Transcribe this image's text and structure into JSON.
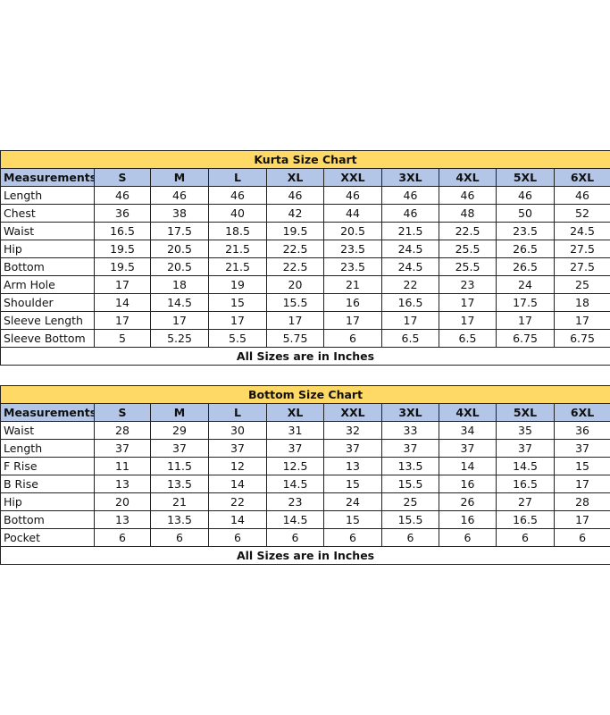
{
  "tables": [
    {
      "title": "Kurta Size Chart",
      "header": [
        "Measurements",
        "S",
        "M",
        "L",
        "XL",
        "XXL",
        "3XL",
        "4XL",
        "5XL",
        "6XL"
      ],
      "rows": [
        [
          "Length",
          "46",
          "46",
          "46",
          "46",
          "46",
          "46",
          "46",
          "46",
          "46"
        ],
        [
          "Chest",
          "36",
          "38",
          "40",
          "42",
          "44",
          "46",
          "48",
          "50",
          "52"
        ],
        [
          "Waist",
          "16.5",
          "17.5",
          "18.5",
          "19.5",
          "20.5",
          "21.5",
          "22.5",
          "23.5",
          "24.5"
        ],
        [
          "Hip",
          "19.5",
          "20.5",
          "21.5",
          "22.5",
          "23.5",
          "24.5",
          "25.5",
          "26.5",
          "27.5"
        ],
        [
          "Bottom",
          "19.5",
          "20.5",
          "21.5",
          "22.5",
          "23.5",
          "24.5",
          "25.5",
          "26.5",
          "27.5"
        ],
        [
          "Arm Hole",
          "17",
          "18",
          "19",
          "20",
          "21",
          "22",
          "23",
          "24",
          "25"
        ],
        [
          "Shoulder",
          "14",
          "14.5",
          "15",
          "15.5",
          "16",
          "16.5",
          "17",
          "17.5",
          "18"
        ],
        [
          "Sleeve Length",
          "17",
          "17",
          "17",
          "17",
          "17",
          "17",
          "17",
          "17",
          "17"
        ],
        [
          "Sleeve Bottom",
          "5",
          "5.25",
          "5.5",
          "5.75",
          "6",
          "6.5",
          "6.5",
          "6.75",
          "6.75"
        ]
      ],
      "footer": "All Sizes are in Inches"
    },
    {
      "title": "Bottom Size Chart",
      "header": [
        "Measurements",
        "S",
        "M",
        "L",
        "XL",
        "XXL",
        "3XL",
        "4XL",
        "5XL",
        "6XL"
      ],
      "rows": [
        [
          "Waist",
          "28",
          "29",
          "30",
          "31",
          "32",
          "33",
          "34",
          "35",
          "36"
        ],
        [
          "Length",
          "37",
          "37",
          "37",
          "37",
          "37",
          "37",
          "37",
          "37",
          "37"
        ],
        [
          "F Rise",
          "11",
          "11.5",
          "12",
          "12.5",
          "13",
          "13.5",
          "14",
          "14.5",
          "15"
        ],
        [
          "B Rise",
          "13",
          "13.5",
          "14",
          "14.5",
          "15",
          "15.5",
          "16",
          "16.5",
          "17"
        ],
        [
          "Hip",
          "20",
          "21",
          "22",
          "23",
          "24",
          "25",
          "26",
          "27",
          "28"
        ],
        [
          "Bottom",
          "13",
          "13.5",
          "14",
          "14.5",
          "15",
          "15.5",
          "16",
          "16.5",
          "17"
        ],
        [
          "Pocket",
          "6",
          "6",
          "6",
          "6",
          "6",
          "6",
          "6",
          "6",
          "6"
        ]
      ],
      "footer": "All Sizes are in Inches"
    }
  ]
}
